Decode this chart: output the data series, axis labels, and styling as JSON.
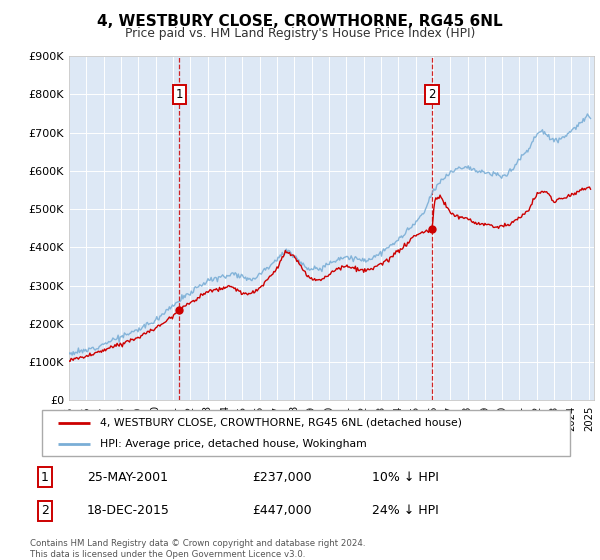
{
  "title": "4, WESTBURY CLOSE, CROWTHORNE, RG45 6NL",
  "subtitle": "Price paid vs. HM Land Registry's House Price Index (HPI)",
  "legend_label_red": "4, WESTBURY CLOSE, CROWTHORNE, RG45 6NL (detached house)",
  "legend_label_blue": "HPI: Average price, detached house, Wokingham",
  "annotation1_date": "25-MAY-2001",
  "annotation1_price_str": "£237,000",
  "annotation1_hpi_diff": "10% ↓ HPI",
  "annotation2_date": "18-DEC-2015",
  "annotation2_price_str": "£447,000",
  "annotation2_hpi_diff": "24% ↓ HPI",
  "footer1": "Contains HM Land Registry data © Crown copyright and database right 2024.",
  "footer2": "This data is licensed under the Open Government Licence v3.0.",
  "red_color": "#cc0000",
  "blue_color": "#7aaed6",
  "plot_bg_color": "#dde8f5",
  "vline_color": "#cc0000",
  "ylim": [
    0,
    900000
  ],
  "xlim_start": 1995.0,
  "xlim_end": 2025.3,
  "sale1_x": 2001.37,
  "sale1_y": 237000,
  "sale2_x": 2015.96,
  "sale2_y": 447000,
  "hpi_anchors_x": [
    1995.0,
    1996.0,
    1997.0,
    1997.5,
    1998.0,
    1999.0,
    2000.0,
    2001.0,
    2001.5,
    2002.0,
    2002.5,
    2003.0,
    2004.0,
    2004.5,
    2005.0,
    2005.5,
    2006.0,
    2007.0,
    2007.5,
    2008.0,
    2008.5,
    2009.0,
    2009.5,
    2010.0,
    2010.5,
    2011.0,
    2011.5,
    2012.0,
    2012.5,
    2013.0,
    2013.5,
    2014.0,
    2014.5,
    2015.0,
    2015.5,
    2016.0,
    2016.5,
    2017.0,
    2017.5,
    2018.0,
    2018.5,
    2019.0,
    2019.5,
    2020.0,
    2020.5,
    2021.0,
    2021.5,
    2022.0,
    2022.3,
    2022.7,
    2023.0,
    2023.5,
    2024.0,
    2024.5,
    2025.0
  ],
  "hpi_anchors_y": [
    123000,
    130000,
    148000,
    158000,
    165000,
    185000,
    210000,
    250000,
    265000,
    280000,
    300000,
    312000,
    325000,
    332000,
    325000,
    315000,
    330000,
    370000,
    390000,
    380000,
    355000,
    340000,
    345000,
    358000,
    370000,
    375000,
    370000,
    365000,
    372000,
    385000,
    400000,
    420000,
    440000,
    465000,
    490000,
    545000,
    575000,
    595000,
    610000,
    610000,
    600000,
    595000,
    590000,
    585000,
    600000,
    630000,
    655000,
    695000,
    705000,
    690000,
    680000,
    685000,
    705000,
    725000,
    740000
  ],
  "red_anchors_x": [
    1995.0,
    1996.0,
    1997.0,
    1997.5,
    1998.0,
    1999.0,
    2000.0,
    2001.0,
    2001.37,
    2002.0,
    2002.5,
    2003.0,
    2004.0,
    2004.5,
    2005.0,
    2005.5,
    2006.0,
    2007.0,
    2007.5,
    2008.0,
    2008.5,
    2009.0,
    2009.5,
    2010.0,
    2010.5,
    2011.0,
    2011.5,
    2012.0,
    2012.5,
    2013.0,
    2013.5,
    2014.0,
    2014.5,
    2015.0,
    2015.96,
    2016.1,
    2016.5,
    2017.0,
    2017.5,
    2018.0,
    2018.5,
    2019.0,
    2019.5,
    2020.0,
    2020.5,
    2021.0,
    2021.5,
    2022.0,
    2022.5,
    2023.0,
    2023.5,
    2024.0,
    2024.5,
    2025.0
  ],
  "red_anchors_y": [
    105000,
    115000,
    130000,
    140000,
    148000,
    165000,
    188000,
    222000,
    237000,
    255000,
    270000,
    283000,
    295000,
    295000,
    280000,
    278000,
    292000,
    345000,
    390000,
    375000,
    340000,
    315000,
    315000,
    330000,
    345000,
    350000,
    345000,
    338000,
    343000,
    355000,
    370000,
    390000,
    408000,
    432000,
    447000,
    525000,
    530000,
    490000,
    480000,
    473000,
    462000,
    460000,
    455000,
    455000,
    462000,
    478000,
    495000,
    540000,
    548000,
    520000,
    528000,
    538000,
    550000,
    555000
  ]
}
